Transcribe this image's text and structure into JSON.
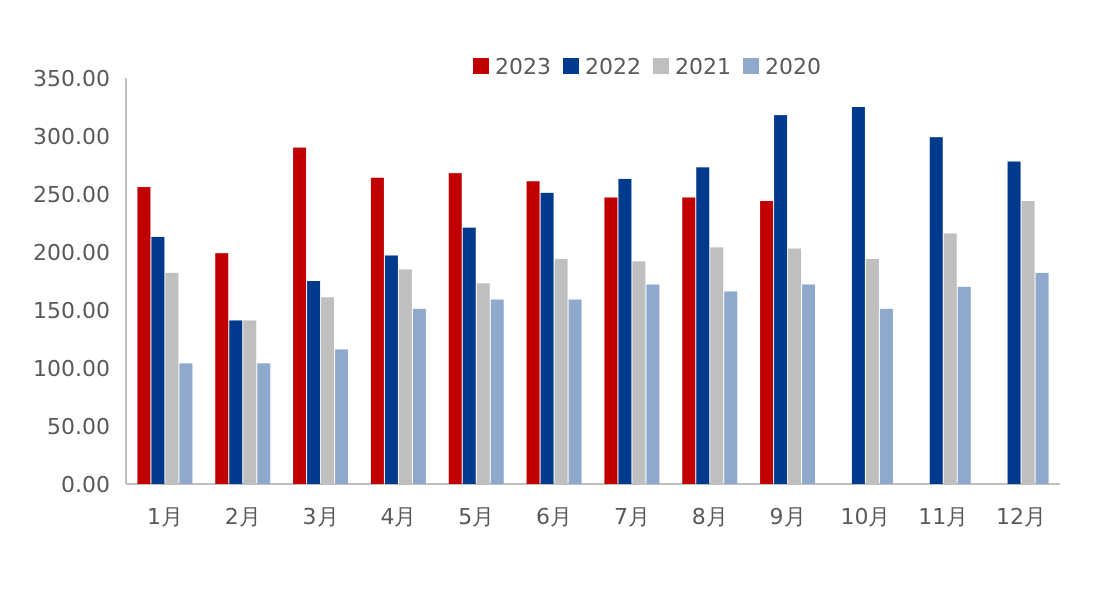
{
  "chart_data": {
    "type": "bar",
    "categories": [
      "1月",
      "2月",
      "3月",
      "4月",
      "5月",
      "6月",
      "7月",
      "8月",
      "9月",
      "10月",
      "11月",
      "12月"
    ],
    "series": [
      {
        "name": "2023",
        "color": "#c00000",
        "values": [
          256,
          199,
          290,
          264,
          268,
          261,
          247,
          247,
          244,
          null,
          null,
          null
        ]
      },
      {
        "name": "2022",
        "color": "#003a8c",
        "values": [
          213,
          141,
          175,
          197,
          221,
          251,
          263,
          273,
          318,
          325,
          299,
          278
        ]
      },
      {
        "name": "2021",
        "color": "#bfbfbf",
        "values": [
          182,
          141,
          161,
          185,
          173,
          194,
          192,
          204,
          203,
          194,
          216,
          244
        ]
      },
      {
        "name": "2020",
        "color": "#8ea9cc",
        "values": [
          104,
          104,
          116,
          151,
          159,
          159,
          172,
          166,
          172,
          151,
          170,
          182
        ]
      }
    ],
    "ylim": [
      0,
      350
    ],
    "yticks": [
      {
        "value": 0,
        "label": "0.00"
      },
      {
        "value": 50,
        "label": "50.00"
      },
      {
        "value": 100,
        "label": "100.00"
      },
      {
        "value": 150,
        "label": "150.00"
      },
      {
        "value": 200,
        "label": "200.00"
      },
      {
        "value": 250,
        "label": "250.00"
      },
      {
        "value": 300,
        "label": "300.00"
      },
      {
        "value": 350,
        "label": "350.00"
      }
    ],
    "grid": false,
    "legend": "top"
  }
}
